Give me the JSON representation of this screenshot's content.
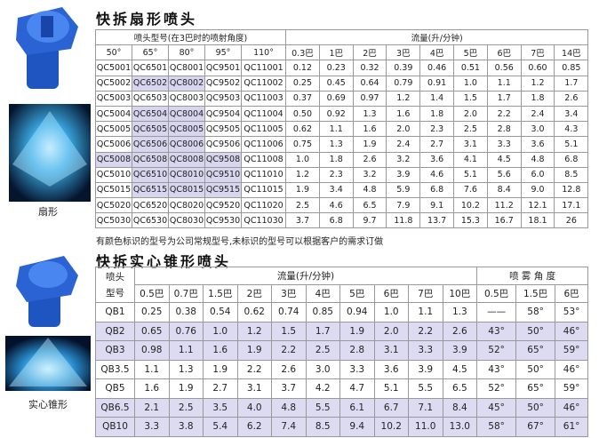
{
  "fan_section": {
    "title": "快拆扇形喷头",
    "caption": "扇形",
    "table": {
      "group_headers": [
        "喷头型号(在3巴时的喷射角度)",
        "流量(升/分钟)"
      ],
      "columns": [
        "50°",
        "65°",
        "80°",
        "95°",
        "110°",
        "0.3巴",
        "1巴",
        "2巴",
        "3巴",
        "4巴",
        "5巴",
        "6巴",
        "7巴",
        "14巴"
      ],
      "rows": [
        [
          "QC5001",
          "QC6501",
          "QC8001",
          "QC9501",
          "QC11001",
          "0.12",
          "0.23",
          "0.32",
          "0.39",
          "0.46",
          "0.51",
          "0.56",
          "0.60",
          "0.85"
        ],
        [
          "QC5002",
          "QC6502",
          "QC8002",
          "QC9502",
          "QC11002",
          "0.25",
          "0.45",
          "0.64",
          "0.79",
          "0.91",
          "1.0",
          "1.1",
          "1.2",
          "1.7"
        ],
        [
          "QC5003",
          "QC6503",
          "QC8003",
          "QC9503",
          "QC11003",
          "0.37",
          "0.69",
          "0.97",
          "1.2",
          "1.4",
          "1.5",
          "1.7",
          "1.8",
          "2.6"
        ],
        [
          "QC5004",
          "QC6504",
          "QC8004",
          "QC9504",
          "QC11004",
          "0.50",
          "0.92",
          "1.3",
          "1.6",
          "1.8",
          "2.0",
          "2.2",
          "2.4",
          "3.4"
        ],
        [
          "QC5005",
          "QC6505",
          "QC8005",
          "QC9505",
          "QC11005",
          "0.62",
          "1.1",
          "1.6",
          "2.0",
          "2.3",
          "2.5",
          "2.8",
          "3.0",
          "4.3"
        ],
        [
          "QC5006",
          "QC6506",
          "QC8006",
          "QC9506",
          "QC11006",
          "0.75",
          "1.3",
          "1.9",
          "2.4",
          "2.7",
          "3.1",
          "3.3",
          "3.6",
          "5.1"
        ],
        [
          "QC5008",
          "QC6508",
          "QC8008",
          "QC9508",
          "QC11008",
          "1.0",
          "1.8",
          "2.6",
          "3.2",
          "3.6",
          "4.1",
          "4.5",
          "4.8",
          "6.8"
        ],
        [
          "QC5010",
          "QC6510",
          "QC8010",
          "QC9510",
          "QC11010",
          "1.2",
          "2.3",
          "3.2",
          "3.9",
          "4.6",
          "5.1",
          "5.6",
          "6.0",
          "8.5"
        ],
        [
          "QC5015",
          "QC6515",
          "QC8015",
          "QC9515",
          "QC11015",
          "1.9",
          "3.4",
          "4.8",
          "5.9",
          "6.8",
          "7.6",
          "8.4",
          "9.0",
          "12.8"
        ],
        [
          "QC5020",
          "QC6520",
          "QC8020",
          "QC9520",
          "QC11020",
          "2.5",
          "4.6",
          "6.5",
          "7.9",
          "9.1",
          "10.2",
          "11.2",
          "12.1",
          "17.1"
        ],
        [
          "QC5030",
          "QC6530",
          "QC8030",
          "QC9530",
          "QC11030",
          "3.7",
          "6.8",
          "9.7",
          "11.8",
          "13.7",
          "15.3",
          "16.7",
          "18.1",
          "26"
        ]
      ]
    },
    "note": "有颜色标识的型号为公司常规型号,未标识的型号可以根据客户的需求订做"
  },
  "cone_section": {
    "title": "快拆实心锥形喷头",
    "caption": "实心锥形",
    "table": {
      "group_headers": [
        "喷头\n型号",
        "流量(升/分钟)",
        "喷 雾 角 度"
      ],
      "columns": [
        "0.5巴",
        "0.7巴",
        "1.5巴",
        "2巴",
        "3巴",
        "4巴",
        "5巴",
        "6巴",
        "7巴",
        "10巴",
        "0.5巴",
        "1.5巴",
        "6巴"
      ],
      "rows": [
        [
          "QB1",
          "0.25",
          "0.38",
          "0.54",
          "0.62",
          "0.74",
          "0.85",
          "0.94",
          "1.0",
          "1.1",
          "1.3",
          "——",
          "58°",
          "53°"
        ],
        [
          "QB2",
          "0.65",
          "0.76",
          "1.0",
          "1.2",
          "1.5",
          "1.7",
          "1.9",
          "2.0",
          "2.2",
          "2.6",
          "43°",
          "50°",
          "46°"
        ],
        [
          "QB3",
          "0.98",
          "1.1",
          "1.6",
          "1.9",
          "2.2",
          "2.5",
          "2.8",
          "3.1",
          "3.3",
          "3.9",
          "52°",
          "65°",
          "59°"
        ],
        [
          "QB3.5",
          "1.1",
          "1.3",
          "1.9",
          "2.2",
          "2.6",
          "3.0",
          "3.3",
          "3.6",
          "3.9",
          "4.5",
          "43°",
          "50°",
          "46°"
        ],
        [
          "QB5",
          "1.6",
          "1.9",
          "2.7",
          "3.1",
          "3.7",
          "4.2",
          "4.7",
          "5.1",
          "5.5",
          "6.5",
          "52°",
          "65°",
          "59°"
        ],
        [
          "QB6.5",
          "2.1",
          "2.5",
          "3.5",
          "4.0",
          "4.8",
          "5.5",
          "6.1",
          "6.7",
          "7.1",
          "8.4",
          "45°",
          "50°",
          "46°"
        ],
        [
          "QB10",
          "3.3",
          "3.8",
          "5.4",
          "6.2",
          "7.4",
          "8.5",
          "9.4",
          "10.2",
          "11.0",
          "13.0",
          "58°",
          "67°",
          "61°"
        ]
      ]
    }
  }
}
